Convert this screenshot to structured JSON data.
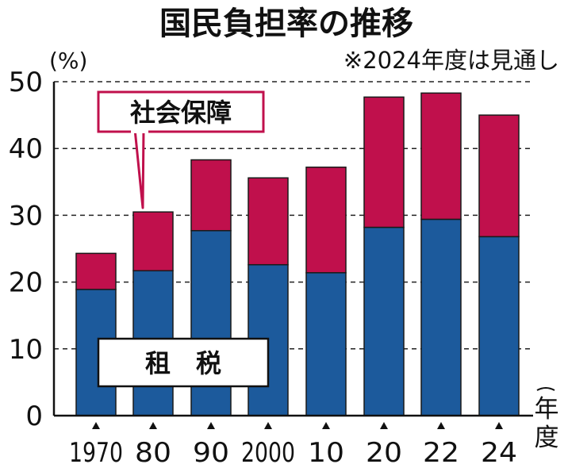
{
  "chart_data": {
    "type": "bar",
    "stacked": true,
    "title": "国民負担率の推移",
    "note": "※2024年度は見通し",
    "ylabel": "(%)",
    "xlabel": "年度",
    "ylim": [
      0,
      50
    ],
    "yticks": [
      "0",
      "10",
      "20",
      "30",
      "40",
      "50"
    ],
    "grid": true,
    "categories": [
      "1970",
      "80",
      "90",
      "2000",
      "10",
      "20",
      "22",
      "24"
    ],
    "series": [
      {
        "name": "租　税",
        "color": "#1c5a9c",
        "values": [
          18.9,
          21.7,
          27.7,
          22.6,
          21.4,
          28.2,
          29.4,
          26.8
        ]
      },
      {
        "name": "社会保障",
        "color": "#c0104c",
        "values": [
          5.4,
          8.8,
          10.6,
          13.0,
          15.8,
          19.5,
          18.9,
          18.2
        ]
      }
    ]
  }
}
